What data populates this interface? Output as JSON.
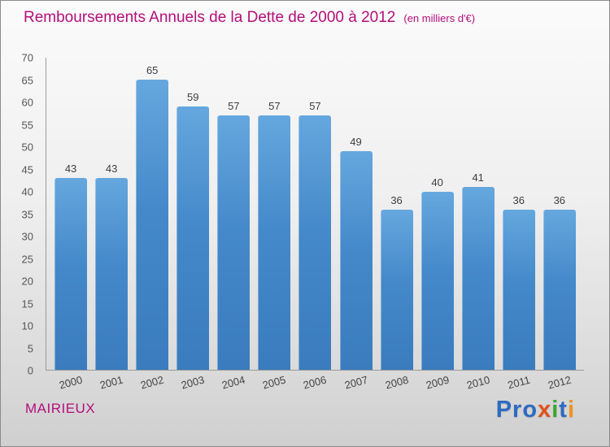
{
  "header": {
    "title": "Remboursements Annuels de la Dette de 2000 à 2012",
    "subtitle": "(en milliers d'€)"
  },
  "chart_data": {
    "type": "bar",
    "title": "Remboursements Annuels de la Dette de 2000 à 2012",
    "subtitle": "(en milliers d'€)",
    "categories": [
      "2000",
      "2001",
      "2002",
      "2003",
      "2004",
      "2005",
      "2006",
      "2007",
      "2008",
      "2009",
      "2010",
      "2011",
      "2012"
    ],
    "values": [
      43,
      43,
      65,
      59,
      57,
      57,
      57,
      49,
      36,
      40,
      41,
      36,
      36
    ],
    "xlabel": "",
    "ylabel": "",
    "ylim": [
      0,
      70
    ],
    "ytick_step": 5,
    "grid": "off",
    "legend": "none",
    "bar_color": "#4489ca"
  },
  "footer": {
    "org_name": "MAIRIEUX",
    "brand": {
      "text": "Proxiti",
      "letters": [
        {
          "ch": "P",
          "color": "#2e6bc0"
        },
        {
          "ch": "r",
          "color": "#2e6bc0"
        },
        {
          "ch": "o",
          "color": "#2e6bc0"
        },
        {
          "ch": "x",
          "color": "#e2521a"
        },
        {
          "ch": "i",
          "color": "#3aa531"
        },
        {
          "ch": "t",
          "color": "#2e6bc0"
        },
        {
          "ch": "i",
          "color": "#f0941e"
        }
      ]
    }
  }
}
